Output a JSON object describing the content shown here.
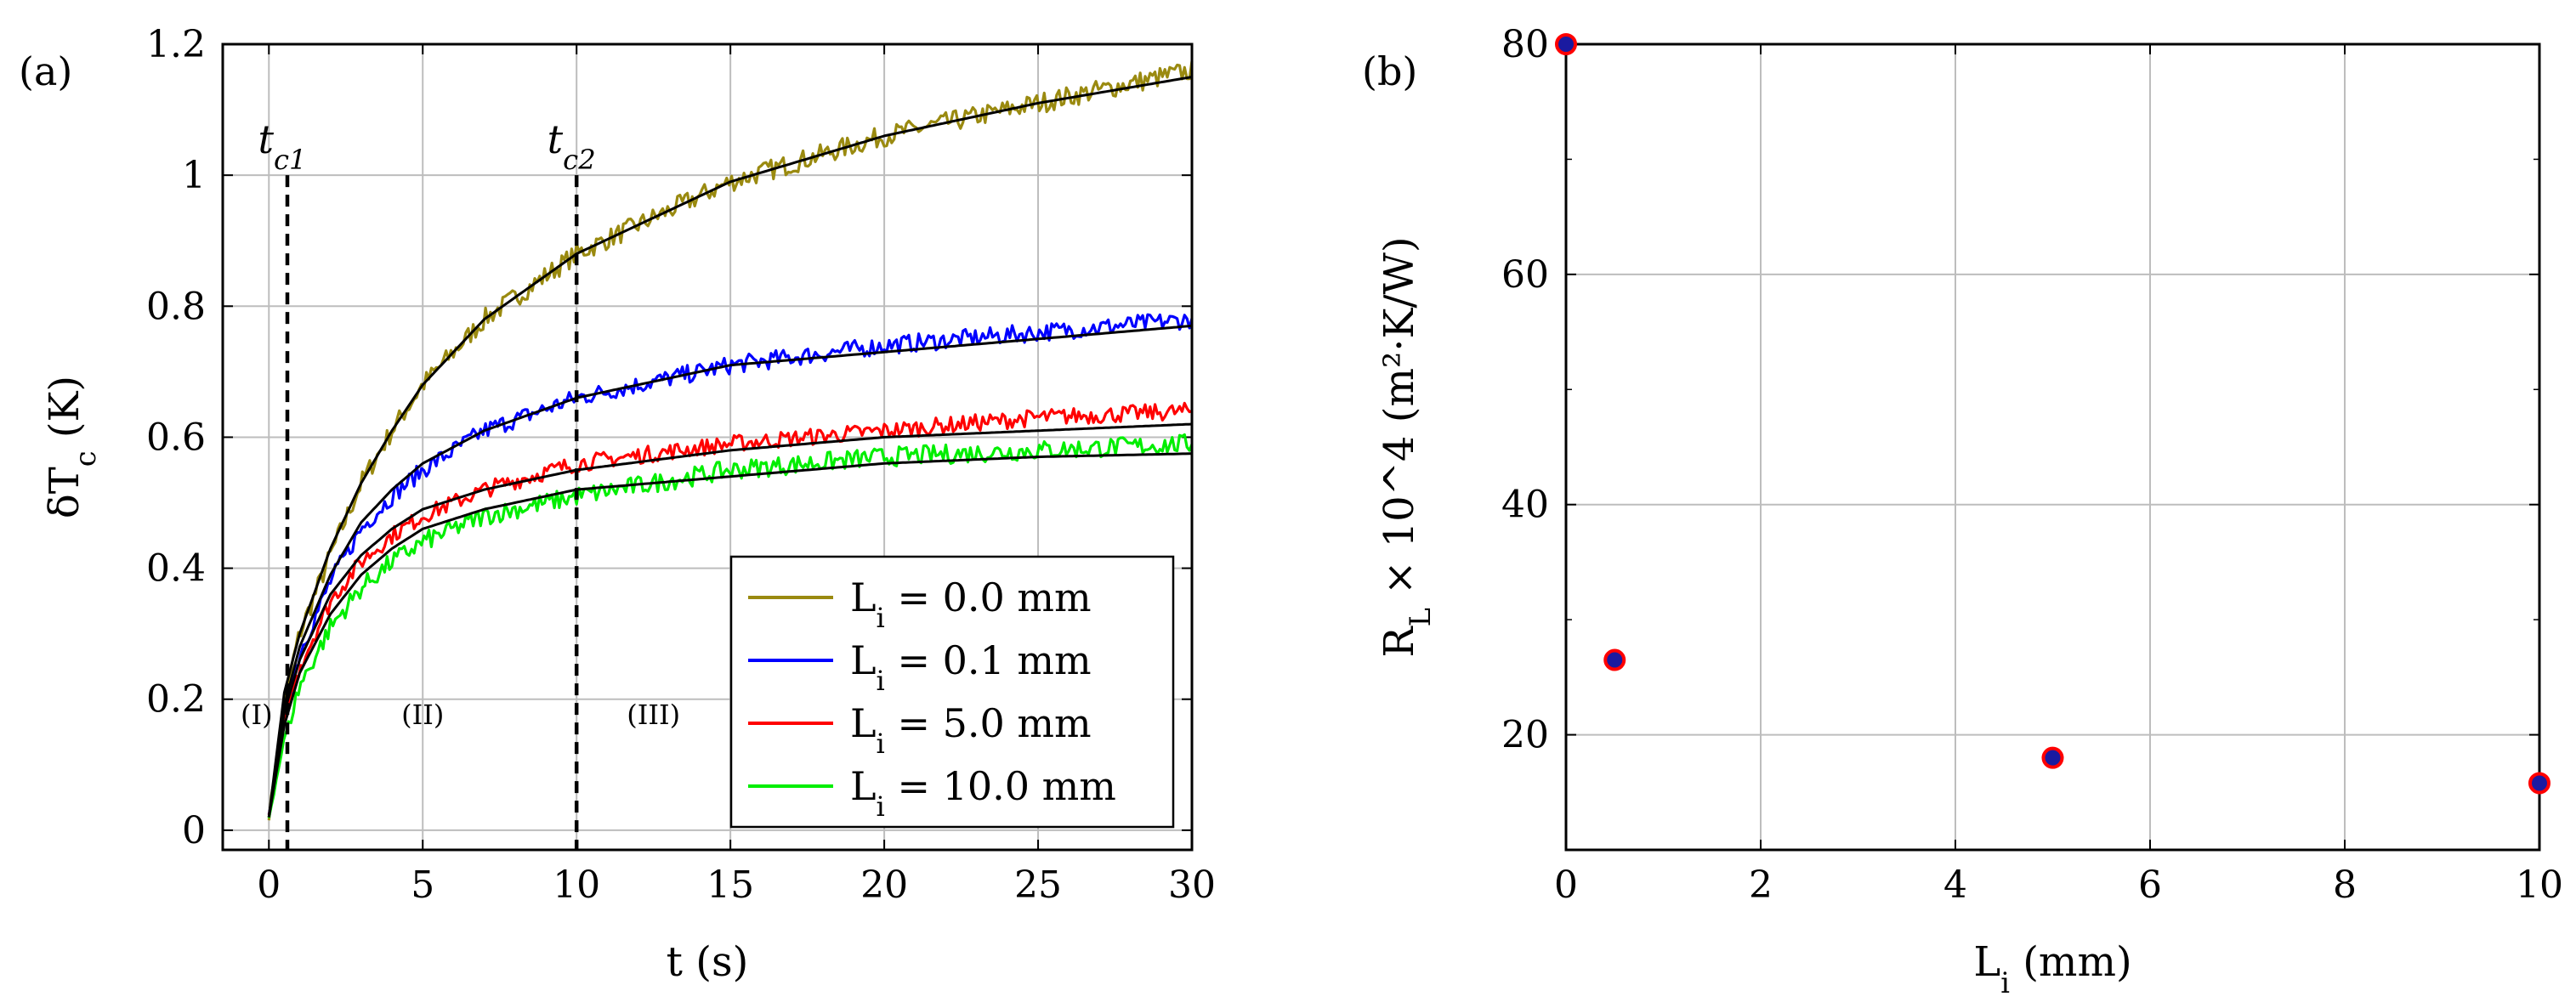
{
  "chart_data": [
    {
      "id": "a",
      "type": "line",
      "panel_label": "(a)",
      "xlabel": "t (s)",
      "ylabel": "δT_c (K)",
      "xlim": [
        -1.5,
        30
      ],
      "ylim": [
        -0.03,
        1.2
      ],
      "xticks": [
        0,
        5,
        10,
        15,
        20,
        25,
        30
      ],
      "yticks": [
        0,
        0.2,
        0.4,
        0.6,
        0.8,
        1,
        1.2
      ],
      "ytick_labels": [
        "0",
        "0.2",
        "0.4",
        "0.6",
        "0.8",
        "1",
        "1.2"
      ],
      "grid": true,
      "legend_position": "lower-right",
      "vlines": [
        {
          "x": 0.6,
          "label": "t_c1"
        },
        {
          "x": 10,
          "label": "t_c2"
        }
      ],
      "regions": [
        {
          "label": "(I)",
          "x": -0.4,
          "y": 0.175
        },
        {
          "label": "(II)",
          "x": 5.0,
          "y": 0.175
        },
        {
          "label": "(III)",
          "x": 12.5,
          "y": 0.175
        }
      ],
      "series": [
        {
          "name": "L_i = 0.0 mm",
          "color": "#9a8a10",
          "noise": 0.016,
          "x": [
            0,
            0.5,
            1,
            2,
            3,
            4,
            5,
            7,
            10,
            15,
            20,
            25,
            30
          ],
          "values": [
            0.02,
            0.2,
            0.3,
            0.42,
            0.53,
            0.61,
            0.68,
            0.78,
            0.88,
            0.99,
            1.06,
            1.11,
            1.16
          ]
        },
        {
          "name": "L_i = 0.1 mm",
          "color": "#0000ff",
          "noise": 0.014,
          "x": [
            0,
            0.5,
            1,
            2,
            3,
            4,
            5,
            7,
            10,
            15,
            20,
            25,
            30
          ],
          "values": [
            0.02,
            0.18,
            0.27,
            0.38,
            0.46,
            0.51,
            0.55,
            0.61,
            0.66,
            0.71,
            0.74,
            0.76,
            0.78
          ]
        },
        {
          "name": "L_i = 5.0 mm",
          "color": "#ff0000",
          "noise": 0.013,
          "x": [
            0,
            0.5,
            1,
            2,
            3,
            4,
            5,
            7,
            10,
            15,
            20,
            25,
            30
          ],
          "values": [
            0.02,
            0.17,
            0.25,
            0.35,
            0.41,
            0.45,
            0.48,
            0.52,
            0.56,
            0.59,
            0.61,
            0.63,
            0.64
          ]
        },
        {
          "name": "L_i = 10.0 mm",
          "color": "#00ee00",
          "noise": 0.015,
          "x": [
            0,
            0.5,
            1,
            2,
            3,
            4,
            5,
            7,
            10,
            15,
            20,
            25,
            30
          ],
          "values": [
            0.02,
            0.14,
            0.22,
            0.31,
            0.37,
            0.41,
            0.44,
            0.48,
            0.51,
            0.55,
            0.57,
            0.58,
            0.59
          ]
        }
      ],
      "fits": [
        {
          "color": "#000000",
          "x": [
            0,
            0.5,
            1,
            2,
            3,
            4,
            5,
            7,
            10,
            15,
            20,
            25,
            30
          ],
          "values": [
            0.02,
            0.21,
            0.3,
            0.43,
            0.53,
            0.61,
            0.68,
            0.78,
            0.88,
            0.99,
            1.06,
            1.11,
            1.15
          ]
        },
        {
          "color": "#000000",
          "x": [
            0,
            0.5,
            1,
            2,
            3,
            4,
            5,
            7,
            10,
            15,
            20,
            25,
            30
          ],
          "values": [
            0.02,
            0.19,
            0.28,
            0.39,
            0.47,
            0.52,
            0.56,
            0.61,
            0.66,
            0.71,
            0.73,
            0.75,
            0.77
          ]
        },
        {
          "color": "#000000",
          "x": [
            0,
            0.5,
            1,
            2,
            3,
            4,
            5,
            7,
            10,
            15,
            20,
            25,
            30
          ],
          "values": [
            0.02,
            0.18,
            0.26,
            0.36,
            0.42,
            0.46,
            0.49,
            0.52,
            0.55,
            0.58,
            0.6,
            0.61,
            0.62
          ]
        },
        {
          "color": "#000000",
          "x": [
            0,
            0.5,
            1,
            2,
            3,
            4,
            5,
            7,
            10,
            15,
            20,
            25,
            30
          ],
          "values": [
            0.02,
            0.16,
            0.24,
            0.33,
            0.39,
            0.43,
            0.46,
            0.49,
            0.52,
            0.54,
            0.56,
            0.57,
            0.575
          ]
        }
      ]
    },
    {
      "id": "b",
      "type": "scatter",
      "panel_label": "(b)",
      "xlabel": "L_i (mm)",
      "ylabel": "R_L × 10^4 (m²·K/W)",
      "xlim": [
        0,
        10
      ],
      "ylim": [
        10,
        80
      ],
      "xticks": [
        0,
        2,
        4,
        6,
        8,
        10
      ],
      "yticks": [
        20,
        40,
        60,
        80
      ],
      "grid": true,
      "marker_fill": "#1a1aa0",
      "marker_edge": "#ff0000",
      "x": [
        0,
        0.5,
        5,
        10
      ],
      "values": [
        80,
        26.5,
        18,
        15.8
      ]
    }
  ]
}
